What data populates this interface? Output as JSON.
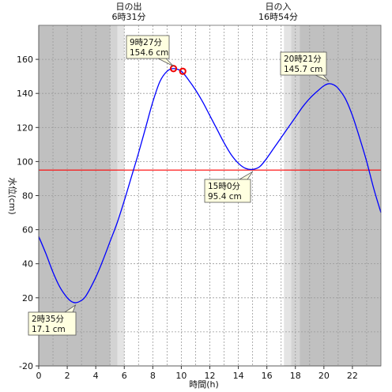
{
  "chart_data": {
    "type": "line",
    "xlabel": "時間(h)",
    "ylabel": "水位(cm)",
    "xlim": [
      0,
      24
    ],
    "ylim": [
      -20,
      180
    ],
    "xticks": [
      "0",
      "2",
      "4",
      "6",
      "8",
      "10",
      "12",
      "14",
      "16",
      "18",
      "20",
      "22"
    ],
    "yticks": [
      "-20",
      "0",
      "20",
      "40",
      "60",
      "80",
      "100",
      "120",
      "140",
      "160"
    ],
    "sunrise": {
      "label": "日の出",
      "time": "6時31分",
      "hour": 6.52
    },
    "sunset": {
      "label": "日の入",
      "time": "16時54分",
      "hour": 16.9
    },
    "reference_level": 95,
    "reference_color": "#ff0000",
    "series_color": "#0000ff",
    "series": [
      {
        "x": [
          0,
          0.5,
          1,
          1.5,
          2,
          2.3,
          2.58,
          2.9,
          3.3,
          4,
          4.5,
          5,
          5.5,
          6,
          6.5,
          7,
          7.5,
          8,
          8.5,
          9,
          9.45,
          10,
          10.5,
          11,
          11.5,
          12,
          12.5,
          13,
          13.5,
          14,
          14.5,
          15,
          15.5,
          16,
          16.5,
          17,
          17.5,
          18,
          18.5,
          19,
          19.5,
          20,
          20.35,
          20.7,
          21,
          21.5,
          22,
          22.5,
          23,
          23.5,
          24
        ],
        "y": [
          56,
          46,
          35,
          26,
          20,
          17.8,
          17.1,
          18,
          21,
          32,
          42,
          53,
          64,
          77,
          91,
          105,
          120,
          135,
          147,
          153,
          154.6,
          153,
          148,
          142,
          135,
          127,
          119,
          111,
          104,
          99,
          96,
          95.4,
          97,
          102,
          108,
          114,
          120,
          126,
          132,
          137,
          141,
          144.5,
          145.7,
          145,
          143,
          137,
          127,
          114,
          100,
          84,
          70
        ]
      }
    ],
    "markers": [
      {
        "x": 9.45,
        "y": 154.6
      },
      {
        "x": 10.1,
        "y": 153
      }
    ],
    "annotations": [
      {
        "time": "9時27分",
        "level": "154.6 cm",
        "x": 9.45,
        "y": 154.6
      },
      {
        "time": "2時35分",
        "level": "17.1 cm",
        "x": 2.58,
        "y": 17.1
      },
      {
        "time": "15時0分",
        "level": "95.4 cm",
        "x": 15.0,
        "y": 95.4
      },
      {
        "time": "20時21分",
        "level": "145.7 cm",
        "x": 20.35,
        "y": 145.7
      }
    ],
    "colors": {
      "night": "#c0c0c0",
      "twilight_dark": "#d3d3d3",
      "twilight_light": "#e4e4e4",
      "day": "#ffffff",
      "callout_fill": "#ffffe0"
    }
  }
}
